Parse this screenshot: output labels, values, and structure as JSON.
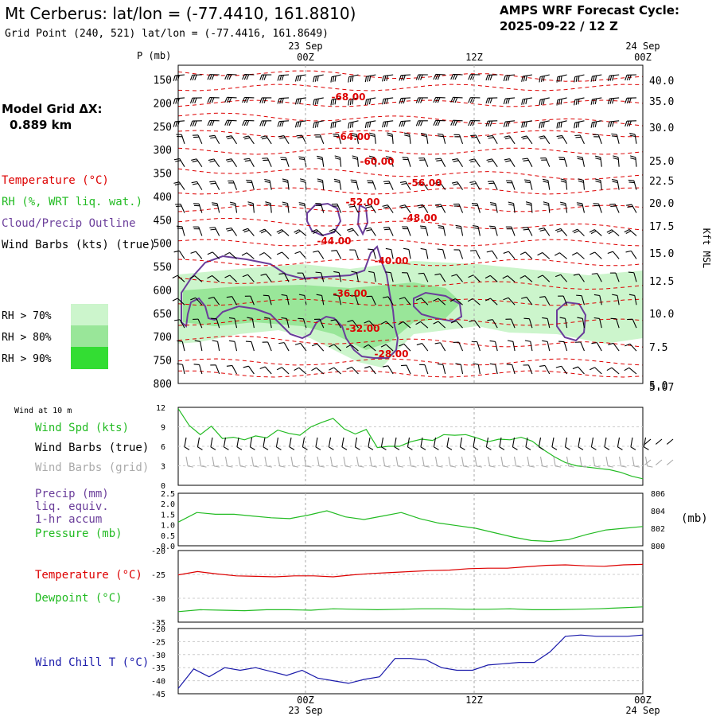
{
  "header": {
    "title": "Mt Cerberus:  lat/lon = (-77.4410, 161.8810)",
    "grid_point": "Grid Point (240, 521) lat/lon = (-77.4416, 161.8649)",
    "forecast_line1": "AMPS WRF Forecast Cycle:",
    "forecast_line2": "2025-09-22 / 12  Z",
    "model_grid_label": "Model Grid ΔX:",
    "model_grid_value": "0.889 km"
  },
  "time_axis": {
    "date_left": "23 Sep",
    "date_right": "24 Sep",
    "labels": [
      "00Z",
      "12Z",
      "00Z"
    ],
    "date_bottom_left": "23 Sep",
    "date_bottom_right": "24 Sep"
  },
  "legend": {
    "temperature": "Temperature (°C)",
    "rh": "RH (%, WRT liq. wat.)",
    "cloud": "Cloud/Precip Outline",
    "wind_barbs": "Wind Barbs (kts) (true)",
    "rh70": "RH > 70%",
    "rh80": "RH > 80%",
    "rh90": "RH > 90%"
  },
  "colors": {
    "temperature": "#dd0000",
    "rh70": "#ccf5cc",
    "rh80": "#99e699",
    "rh90": "#33dd33",
    "cloud": "#6a3d9a",
    "pressure": "#22bb22",
    "wind_spd": "#22bb22",
    "dewpoint": "#22bb22",
    "wind_chill": "#1a1aaa",
    "grid_barbs": "#aaaaaa"
  },
  "chart_data": [
    {
      "type": "time-height cross section",
      "panel": "upper",
      "y_axis_title": "P (mb)",
      "right_axis_title": "Kft MSL",
      "pressure_levels": [
        150,
        200,
        250,
        300,
        350,
        400,
        450,
        500,
        550,
        600,
        650,
        700,
        750,
        800
      ],
      "kft_labels": [
        "40.0",
        "35.0",
        "30.0",
        "25.0",
        "22.5",
        "20.0",
        "17.5",
        "15.0",
        "12.5",
        "10.0",
        "7.5",
        "5.07"
      ],
      "kft_overlap_label": "5.0",
      "isotherm_labels": [
        "-68.00",
        "-64.00",
        "-60.00",
        "-56.00",
        "-52.00",
        "-48.00",
        "-44.00",
        "-40.00",
        "-36.00",
        "-32.00",
        "-28.00"
      ]
    },
    {
      "type": "line",
      "panel": "wind10m",
      "title": "Wind at 10 m",
      "labels": [
        "Wind Spd (kts)",
        "Wind Barbs (true)",
        "Wind Barbs (grid)"
      ],
      "yticks": [
        "0",
        "3",
        "6",
        "9",
        "12"
      ],
      "ylim": [
        0,
        12
      ],
      "wind_speed_kts": [
        11.8,
        9.2,
        7.8,
        9.1,
        7.2,
        7.4,
        7.0,
        7.6,
        7.3,
        8.5,
        8.0,
        7.7,
        9.0,
        9.7,
        10.3,
        8.7,
        7.9,
        8.6,
        5.8,
        6.0,
        6.0,
        6.7,
        7.1,
        6.9,
        7.8,
        7.7,
        7.8,
        7.3,
        6.7,
        7.1,
        7.0,
        7.4,
        6.8,
        5.5,
        4.4,
        3.5,
        3.0,
        2.8,
        2.6,
        2.4,
        2.0,
        1.4,
        1.0
      ]
    },
    {
      "type": "line",
      "panel": "precip_pressure",
      "labels": [
        "Precip (mm)",
        "liq. equiv.",
        "1-hr accum",
        "Pressure (mb)"
      ],
      "left_ticks": [
        "0.0",
        "0.5",
        "1.0",
        "1.5",
        "2.0",
        "2.5"
      ],
      "right_ticks": [
        "800",
        "802",
        "804",
        "806"
      ],
      "right_unit": "(mb)",
      "ylim_right": [
        800,
        806
      ],
      "pressure_mb": [
        802.7,
        803.8,
        803.6,
        803.6,
        803.4,
        803.2,
        803.1,
        803.5,
        804.0,
        803.3,
        803.0,
        803.4,
        803.8,
        803.1,
        802.6,
        802.3,
        802.0,
        801.5,
        801.0,
        800.6,
        800.5,
        800.7,
        801.3,
        801.8,
        802.0,
        802.2
      ]
    },
    {
      "type": "line",
      "panel": "temp_dewpoint",
      "labels": [
        "Temperature (°C)",
        "Dewpoint (°C)"
      ],
      "yticks": [
        "-20",
        "-25",
        "-30",
        "-35"
      ],
      "ylim": [
        -35,
        -20
      ],
      "temperature_c": [
        -25.1,
        -24.4,
        -24.9,
        -25.3,
        -25.4,
        -25.5,
        -25.3,
        -25.3,
        -25.5,
        -25.1,
        -24.8,
        -24.6,
        -24.4,
        -24.2,
        -24.1,
        -23.8,
        -23.7,
        -23.7,
        -23.4,
        -23.1,
        -23.0,
        -23.2,
        -23.3,
        -23.0,
        -22.9
      ],
      "dewpoint_c": [
        -32.8,
        -32.4,
        -32.5,
        -32.6,
        -32.4,
        -32.4,
        -32.5,
        -32.2,
        -32.3,
        -32.4,
        -32.3,
        -32.2,
        -32.2,
        -32.3,
        -32.3,
        -32.2,
        -32.4,
        -32.4,
        -32.3,
        -32.2,
        -32.0,
        -31.8
      ]
    },
    {
      "type": "line",
      "panel": "wind_chill",
      "labels": [
        "Wind Chill T (°C)"
      ],
      "yticks": [
        "-20",
        "-25",
        "-30",
        "-35",
        "-40",
        "-45"
      ],
      "ylim": [
        -45,
        -20
      ],
      "wind_chill_c": [
        -43,
        -35.5,
        -38.5,
        -35,
        -36,
        -35,
        -36.5,
        -38,
        -36,
        -39,
        -40,
        -41,
        -39.5,
        -38.5,
        -31.5,
        -31.5,
        -32,
        -35,
        -36,
        -36,
        -34,
        -33.5,
        -33,
        -33,
        -29,
        -23,
        -22.5,
        -23,
        -23,
        -23,
        -22.5
      ]
    }
  ]
}
